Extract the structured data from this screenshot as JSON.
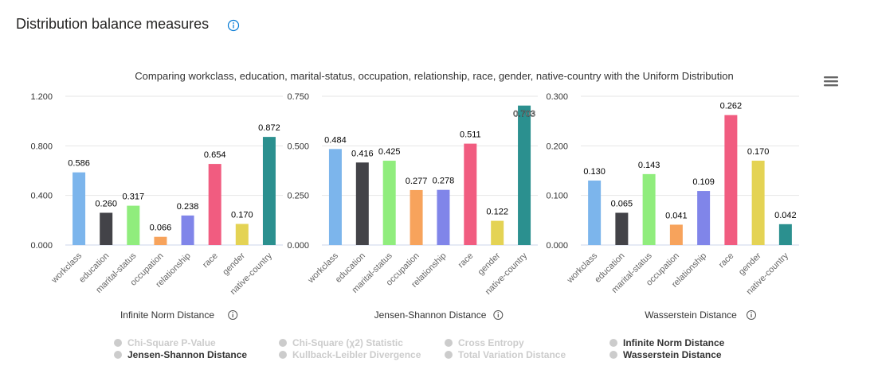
{
  "page": {
    "title": "Distribution balance measures",
    "info_icon": "info-circle-icon",
    "menu_icon": "hamburger-menu-icon"
  },
  "chart_title": "Comparing workclass, education, marital-status, occupation, relationship, race, gender, native-country with the Uniform Distribution",
  "colors": {
    "bars": [
      "#7cb5ec",
      "#434348",
      "#90ed7d",
      "#f7a35c",
      "#8085e9",
      "#f15c80",
      "#e4d354",
      "#2b908f"
    ],
    "legend_active": "#333333",
    "legend_inactive": "#cccccc"
  },
  "chart_data": [
    {
      "type": "bar",
      "title": "",
      "xlabel": "Infinite Norm Distance",
      "ylabel": "",
      "categories": [
        "workclass",
        "education",
        "marital-status",
        "occupation",
        "relationship",
        "race",
        "gender",
        "native-country"
      ],
      "values": [
        0.586,
        0.26,
        0.317,
        0.066,
        0.238,
        0.654,
        0.17,
        0.872
      ],
      "value_labels": [
        "0.586",
        "0.260",
        "0.317",
        "0.066",
        "0.238",
        "0.654",
        "0.170",
        "0.872"
      ],
      "ylim": [
        0,
        1.2
      ],
      "yticks": [
        "0.000",
        "0.400",
        "0.800",
        "1.200"
      ],
      "grid": true
    },
    {
      "type": "bar",
      "title": "",
      "xlabel": "Jensen-Shannon Distance",
      "ylabel": "",
      "categories": [
        "workclass",
        "education",
        "marital-status",
        "occupation",
        "relationship",
        "race",
        "gender",
        "native-country"
      ],
      "values": [
        0.484,
        0.416,
        0.425,
        0.277,
        0.278,
        0.511,
        0.122,
        0.703
      ],
      "value_labels": [
        "0.484",
        "0.416",
        "0.425",
        "0.277",
        "0.278",
        "0.511",
        "0.122",
        "0.703"
      ],
      "ylim": [
        0,
        0.75
      ],
      "yticks": [
        "0.000",
        "0.250",
        "0.500",
        "0.750"
      ],
      "grid": true
    },
    {
      "type": "bar",
      "title": "",
      "xlabel": "Wasserstein Distance",
      "ylabel": "",
      "categories": [
        "workclass",
        "education",
        "marital-status",
        "occupation",
        "relationship",
        "race",
        "gender",
        "native-country"
      ],
      "values": [
        0.13,
        0.065,
        0.143,
        0.041,
        0.109,
        0.262,
        0.17,
        0.042
      ],
      "value_labels": [
        "0.130",
        "0.065",
        "0.143",
        "0.041",
        "0.109",
        "0.262",
        "0.170",
        "0.042"
      ],
      "ylim": [
        0,
        0.3
      ],
      "yticks": [
        "0.000",
        "0.100",
        "0.200",
        "0.300"
      ],
      "grid": true
    }
  ],
  "legend": [
    {
      "label": "Chi-Square P-Value",
      "active": false
    },
    {
      "label": "Jensen-Shannon Distance",
      "active": true
    },
    {
      "label": "Chi-Square (χ2) Statistic",
      "active": false
    },
    {
      "label": "Kullback-Leibler Divergence",
      "active": false
    },
    {
      "label": "Cross Entropy",
      "active": false
    },
    {
      "label": "Total Variation Distance",
      "active": false
    },
    {
      "label": "Infinite Norm Distance",
      "active": true
    },
    {
      "label": "Wasserstein Distance",
      "active": true
    }
  ]
}
